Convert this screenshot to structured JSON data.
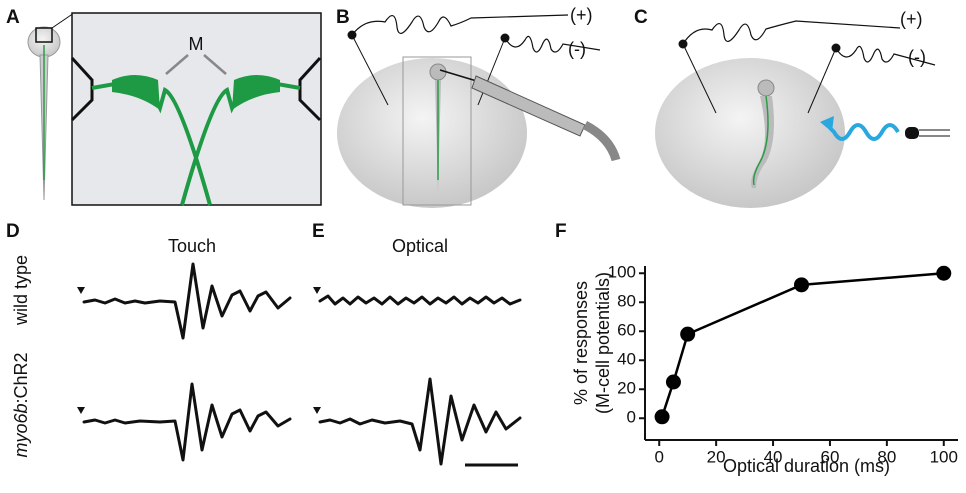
{
  "panels": {
    "a": "A",
    "b": "B",
    "c": "C",
    "d": "D",
    "e": "E",
    "f": "F"
  },
  "figure": {
    "m_label": "M",
    "b_plus": "(+)",
    "b_minus": "(-)",
    "c_plus": "(+)",
    "c_minus": "(-)",
    "touch": "Touch",
    "optical": "Optical",
    "row1": "wild type",
    "row2_italic": "myo6b",
    "row2_rest": ":ChR2"
  },
  "chart_data": {
    "type": "line",
    "x_label": "Optical duration (ms)",
    "y_label": [
      "% of responses",
      "(M-cell potentials)"
    ],
    "x": [
      1,
      5,
      10,
      50,
      100
    ],
    "values": [
      1,
      25,
      58,
      92,
      100
    ],
    "color": "#000000",
    "xlim": [
      -5,
      105
    ],
    "xticks": [
      0,
      20,
      40,
      60,
      80,
      100
    ],
    "ylim": [
      -15,
      105
    ],
    "yticks": [
      0,
      20,
      40,
      60,
      80,
      100
    ]
  }
}
